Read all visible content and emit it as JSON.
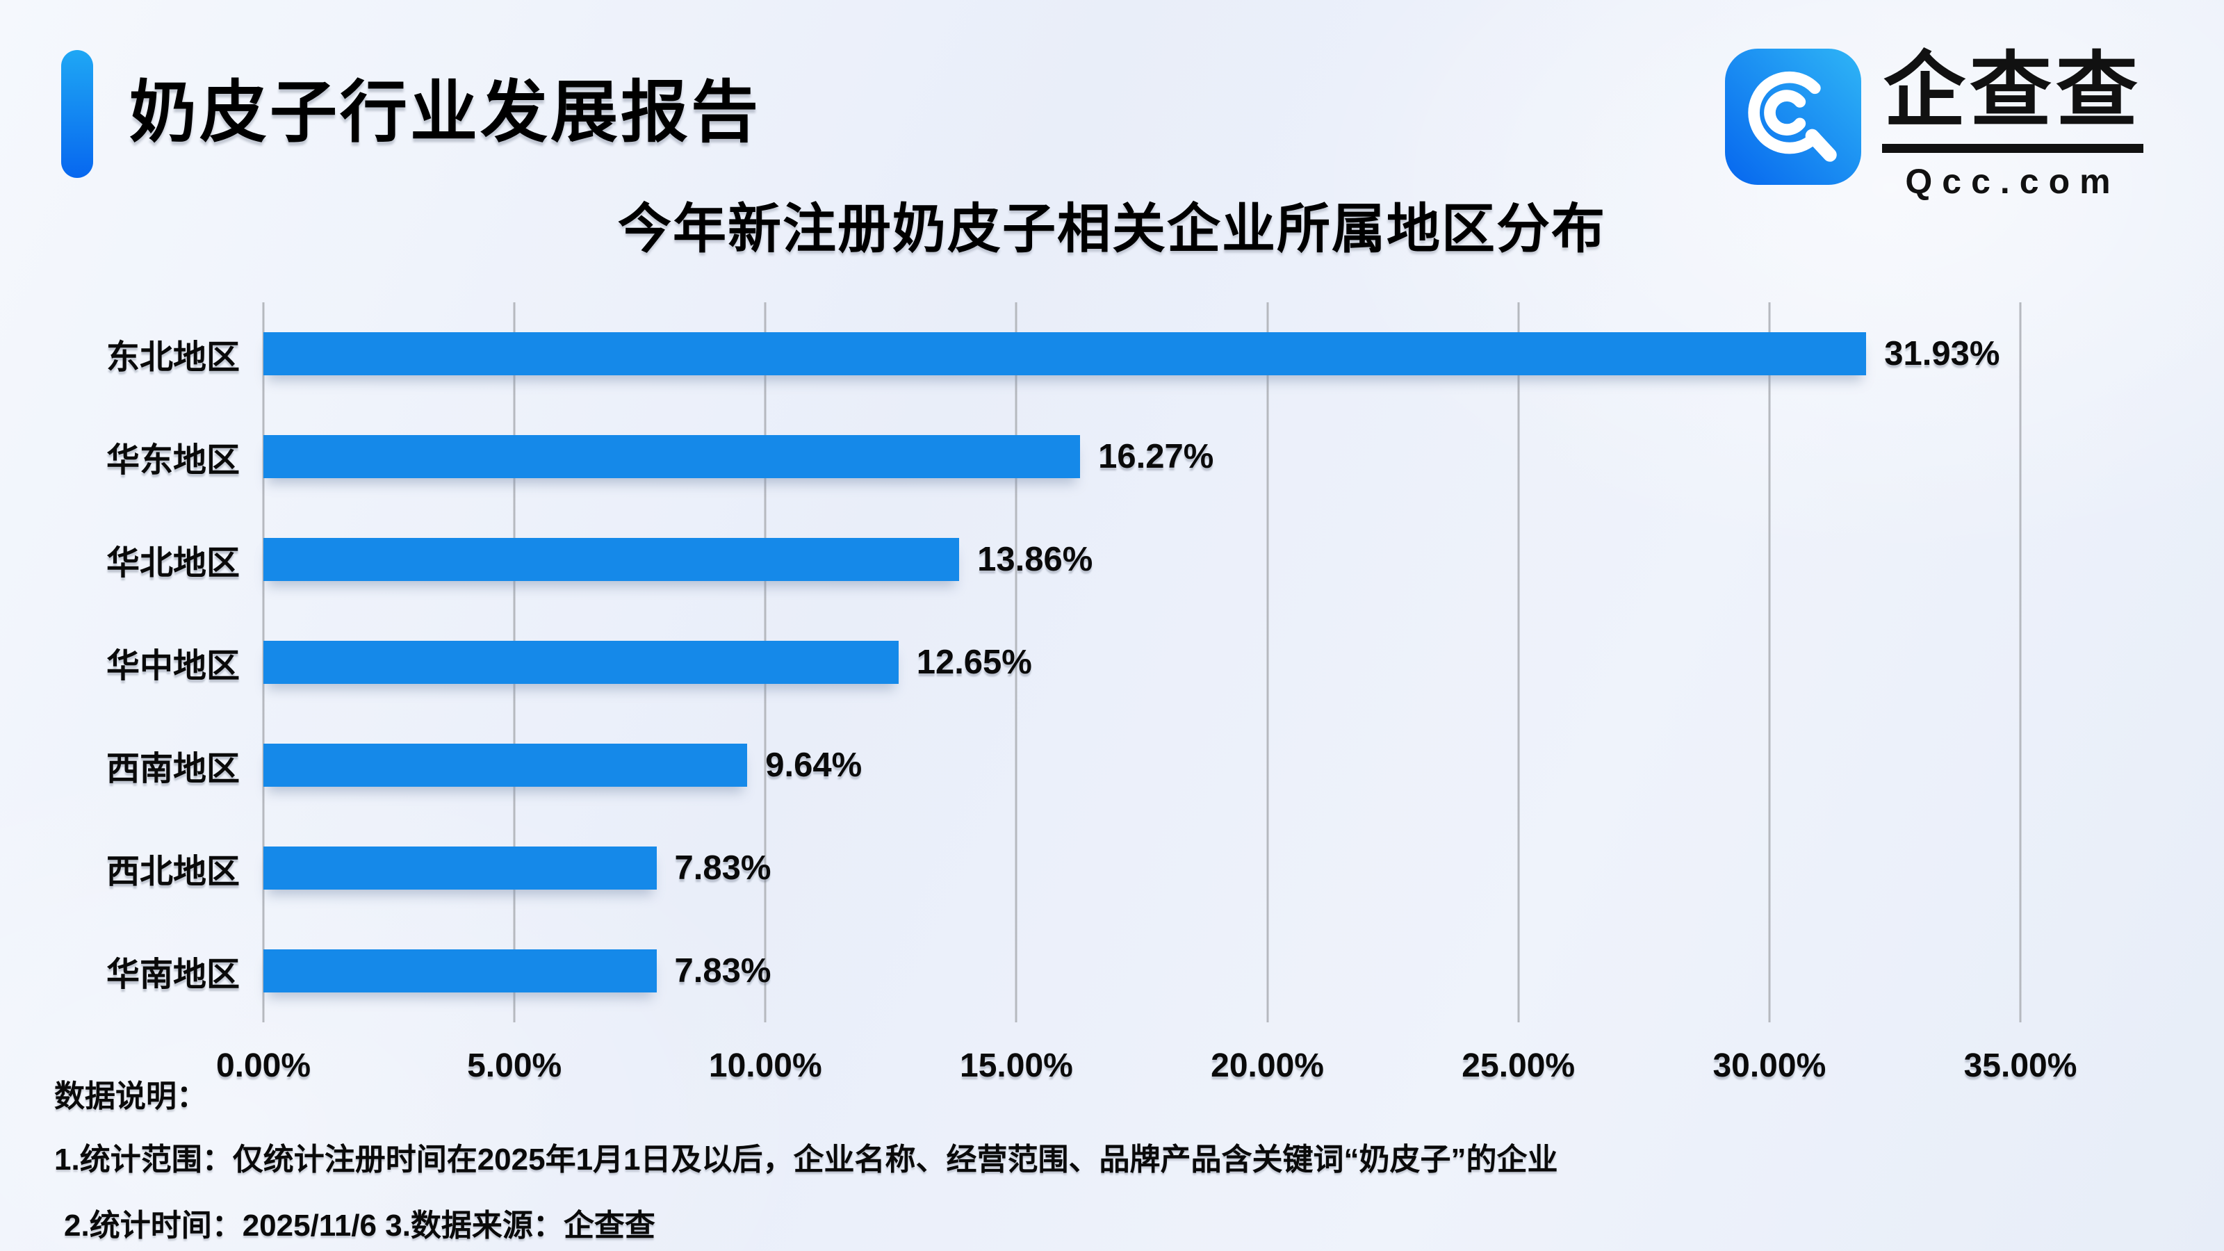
{
  "header": {
    "title": "奶皮子行业发展报告"
  },
  "logo": {
    "icon": "qcc-magnifier-icon",
    "cn": "企查查",
    "domain": "Qcc.com",
    "icon_blue_dark": "#0666ee",
    "icon_blue_light": "#2fb5f6"
  },
  "chart_data": {
    "type": "bar",
    "orientation": "horizontal",
    "title": "今年新注册奶皮子相关企业所属地区分布",
    "categories": [
      "东北地区",
      "华东地区",
      "华北地区",
      "华中地区",
      "西南地区",
      "西北地区",
      "华南地区"
    ],
    "values": [
      31.93,
      16.27,
      13.86,
      12.65,
      9.64,
      7.83,
      7.83
    ],
    "value_labels": [
      "31.93%",
      "16.27%",
      "13.86%",
      "12.65%",
      "9.64%",
      "7.83%",
      "7.83%"
    ],
    "xlabel": "",
    "ylabel": "",
    "xlim": [
      0,
      35
    ],
    "x_ticks": {
      "values": [
        0,
        5,
        10,
        15,
        20,
        25,
        30,
        35
      ],
      "labels": [
        "0.00%",
        "5.00%",
        "10.00%",
        "15.00%",
        "20.00%",
        "25.00%",
        "30.00%",
        "35.00%"
      ]
    },
    "grid": true,
    "legend": false,
    "bar_color": "#1589e9",
    "gridline_color": "#b6b9bf"
  },
  "notes": {
    "heading": "数据说明：",
    "line1": "1.统计范围：仅统计注册时间在2025年1月1日及以后，企业名称、经营范围、品牌产品含关键词“奶皮子”的企业",
    "line2": "2.统计时间：2025/11/6  3.数据来源：企查查"
  },
  "colors": {
    "accent_top": "#1fa7f4",
    "accent_bottom": "#0767ef",
    "background": "#edf1fa",
    "text": "#0a0a0a"
  }
}
